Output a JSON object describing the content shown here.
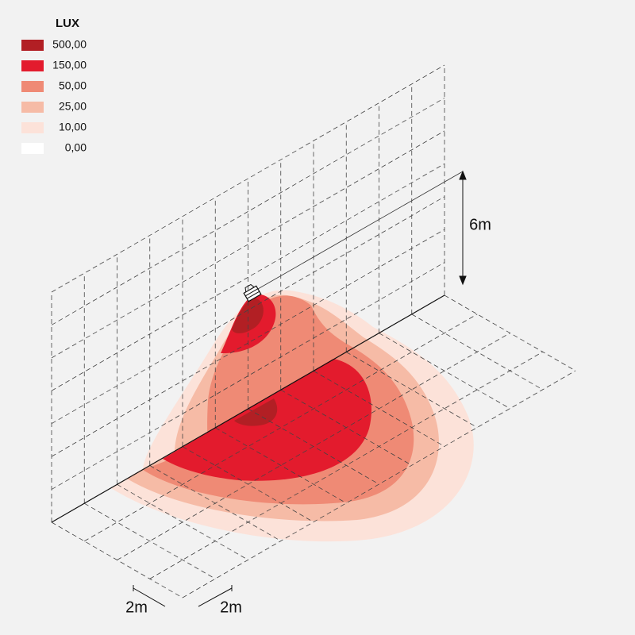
{
  "legend": {
    "title": "LUX",
    "items": [
      {
        "label": "500,00",
        "color": "#b21f24"
      },
      {
        "label": "150,00",
        "color": "#e31b2d"
      },
      {
        "label": "50,00",
        "color": "#ef8a75"
      },
      {
        "label": "25,00",
        "color": "#f6bba6"
      },
      {
        "label": "10,00",
        "color": "#fce2d9"
      },
      {
        "label": "0,00",
        "color": "#ffffff"
      }
    ]
  },
  "dimensions": {
    "height": "6m",
    "width": "2m",
    "depth": "2m"
  }
}
